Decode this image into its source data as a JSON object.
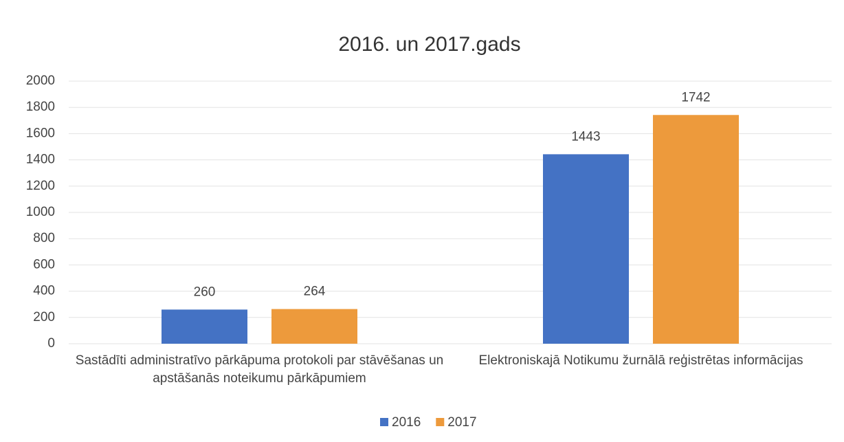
{
  "chart_data": {
    "type": "bar",
    "title": "2016. un 2017.gads",
    "categories": [
      "Sastādīti administratīvo pārkāpuma protokoli par stāvēšanas un apstāšanās noteikumu pārkāpumiem",
      "Elektroniskajā Notikumu žurnālā reģistrētas informācijas"
    ],
    "series": [
      {
        "name": "2016",
        "color": "#4472c4",
        "values": [
          260,
          1443
        ]
      },
      {
        "name": "2017",
        "color": "#ed9a3c",
        "values": [
          264,
          1742
        ]
      }
    ],
    "ylim": [
      0,
      2000
    ],
    "yticks": [
      0,
      200,
      400,
      600,
      800,
      1000,
      1200,
      1400,
      1600,
      1800,
      2000
    ],
    "grid": true,
    "legend": "bottom"
  }
}
